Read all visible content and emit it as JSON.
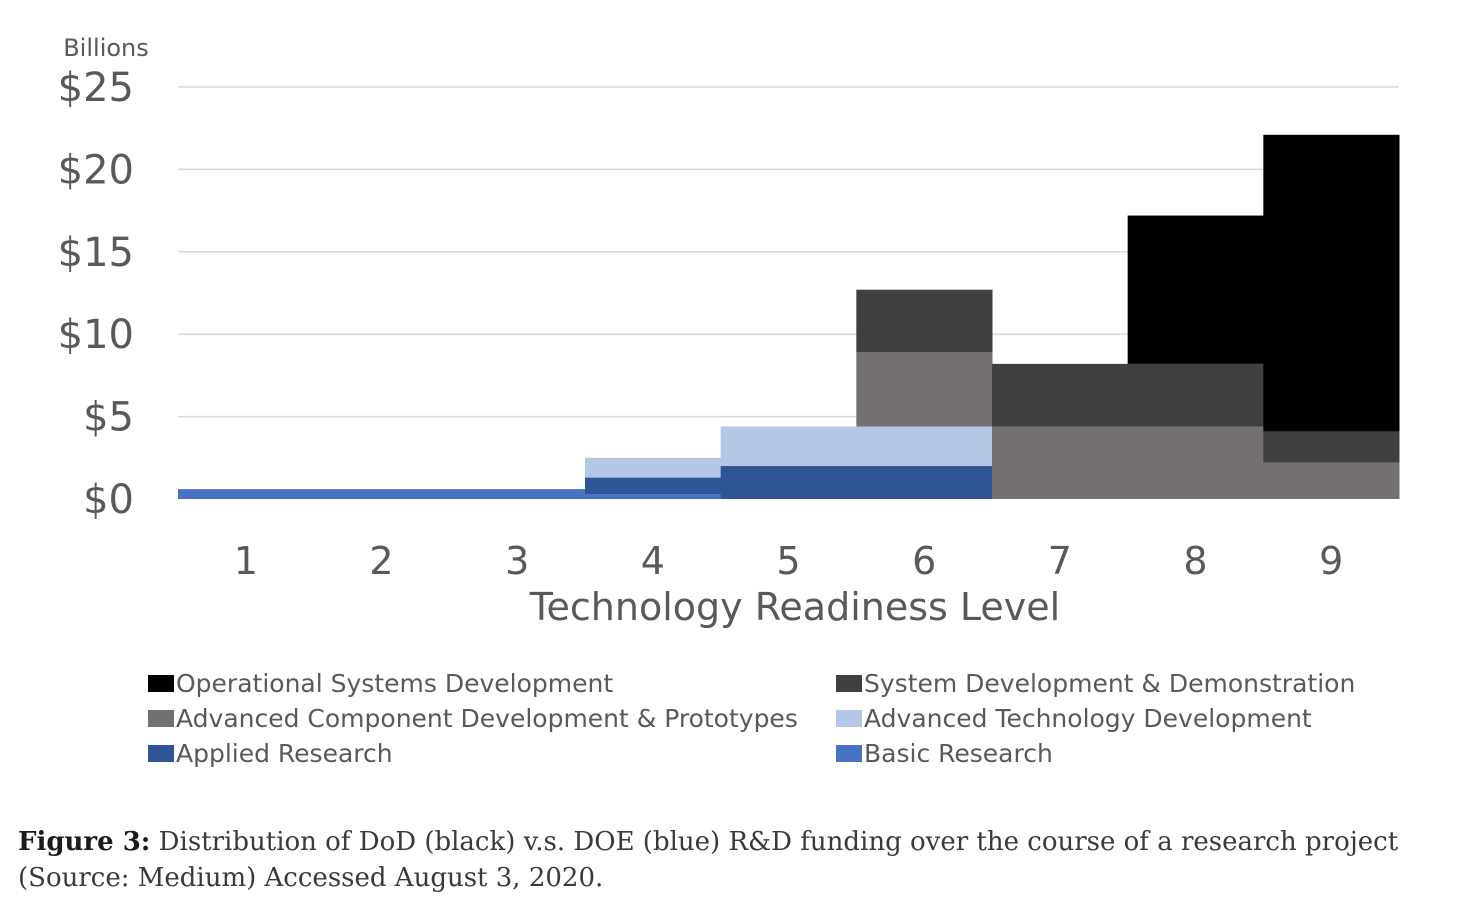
{
  "chart_data": {
    "type": "bar",
    "stacked": true,
    "bar_width": "full-width (adjacent bars, no gaps)",
    "unit_label": "Billions",
    "xlabel": "Technology Readiness Level",
    "ylabel": "",
    "categories": [
      "1",
      "2",
      "3",
      "4",
      "5",
      "6",
      "7",
      "8",
      "9"
    ],
    "ylim": [
      0,
      25
    ],
    "yticks": [
      0,
      5,
      10,
      15,
      20,
      25
    ],
    "ytick_labels": [
      "$0",
      "$5",
      "$10",
      "$15",
      "$20",
      "$25"
    ],
    "grid": true,
    "legend_position": "bottom",
    "series": [
      {
        "name": "Basic Research",
        "color": "#4a72c4",
        "values": [
          0.6,
          0.6,
          0.6,
          0.3,
          0,
          0,
          0,
          0,
          0
        ]
      },
      {
        "name": "Applied Research",
        "color": "#2f5597",
        "values": [
          0,
          0,
          0,
          1.0,
          2.0,
          2.0,
          0,
          0,
          0
        ]
      },
      {
        "name": "Advanced Technology Development",
        "color": "#b4c7e7",
        "values": [
          0,
          0,
          0,
          1.2,
          2.4,
          2.4,
          0,
          0,
          0
        ]
      },
      {
        "name": "Advanced Component Development & Prototypes",
        "color": "#767171",
        "values": [
          0,
          0,
          0,
          0,
          0,
          4.5,
          4.4,
          4.4,
          2.2
        ]
      },
      {
        "name": "System Development & Demonstration",
        "color": "#404040",
        "values": [
          0,
          0,
          0,
          0,
          0,
          3.8,
          3.8,
          3.8,
          1.9
        ]
      },
      {
        "name": "Operational Systems Development",
        "color": "#000000",
        "values": [
          0,
          0,
          0,
          0,
          0,
          0,
          0,
          9.0,
          18.0
        ]
      }
    ],
    "legend_order": [
      "Operational Systems Development",
      "System Development & Demonstration",
      "Advanced Component Development & Prototypes",
      "Advanced Technology Development",
      "Applied Research",
      "Basic Research"
    ]
  },
  "caption": {
    "label": "Figure 3:",
    "text": " Distribution of DoD (black) v.s. DOE (blue) R&D funding over the course of a research project (Source: Medium) Accessed August 3, 2020."
  }
}
